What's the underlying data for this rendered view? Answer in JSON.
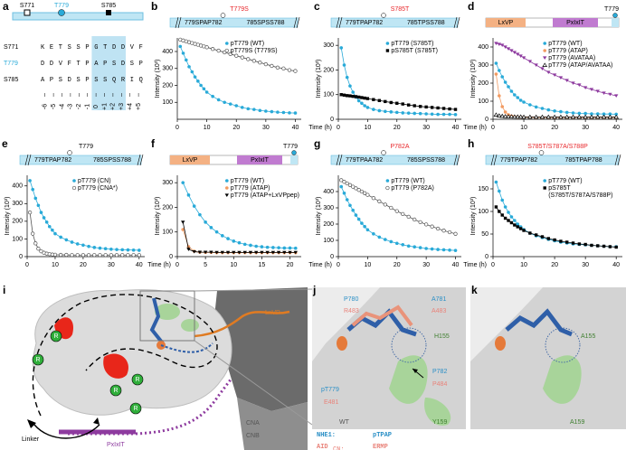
{
  "panel_a": {
    "label": "a",
    "sites": [
      "S771",
      "T779",
      "S785"
    ],
    "rows": [
      {
        "name": "S771",
        "seq": "KETSSPGTDDVF"
      },
      {
        "name": "T779",
        "seq": "DDVFTPAPSDSP"
      },
      {
        "name": "S785",
        "seq": "APSDSPSSQRIQ"
      }
    ],
    "positions": [
      "-6",
      "-5",
      "-4",
      "-3",
      "-2",
      "-1",
      "0",
      "+1",
      "+2",
      "+3",
      "+4",
      "+5"
    ]
  },
  "chart_data": [
    {
      "label": "b",
      "type": "line",
      "header": {
        "site": "T779S",
        "site_color": "#e8262a",
        "left": "779SPAP782",
        "right": "785SPSS788"
      },
      "ylabel": "Intensity (10³)",
      "x": [
        1,
        2,
        3,
        4,
        5,
        6,
        7,
        8,
        9,
        10,
        12,
        14,
        16,
        18,
        20,
        22,
        24,
        26,
        28,
        30,
        32,
        34,
        36,
        38,
        40
      ],
      "xlim": [
        0,
        42
      ],
      "xticks": [
        0,
        10,
        20,
        30,
        40
      ],
      "ylim": [
        0,
        480
      ],
      "yticks": [
        100,
        200,
        300,
        400
      ],
      "series": [
        {
          "name": "pT779 (WT)",
          "color": "#29aad8",
          "marker": "circle",
          "values": [
            430,
            390,
            350,
            310,
            280,
            250,
            225,
            200,
            180,
            160,
            135,
            115,
            100,
            90,
            80,
            70,
            62,
            58,
            52,
            48,
            45,
            42,
            40,
            38,
            37
          ]
        },
        {
          "name": "pT779S (T779S)",
          "color": "#555555",
          "marker": "open-circle",
          "values": [
            470,
            465,
            460,
            455,
            450,
            445,
            440,
            435,
            430,
            425,
            415,
            405,
            395,
            385,
            375,
            365,
            355,
            345,
            335,
            325,
            315,
            305,
            300,
            290,
            285
          ]
        }
      ]
    },
    {
      "label": "c",
      "type": "line",
      "header": {
        "site": "S785T",
        "site_color": "#e8262a",
        "left": "779TPAP782",
        "right": "785TPSS788"
      },
      "ylabel": "Intensity (10³)",
      "xlabel": "Time (h)",
      "x": [
        1,
        2,
        3,
        4,
        5,
        6,
        7,
        8,
        9,
        10,
        12,
        14,
        16,
        18,
        20,
        22,
        24,
        26,
        28,
        30,
        32,
        34,
        36,
        38,
        40
      ],
      "xlim": [
        0,
        42
      ],
      "xticks": [
        0,
        10,
        20,
        30,
        40
      ],
      "ylim": [
        0,
        330
      ],
      "yticks": [
        0,
        100,
        200,
        300
      ],
      "series": [
        {
          "name": "pT779 (S785T)",
          "color": "#29aad8",
          "marker": "circle",
          "values": [
            290,
            220,
            170,
            135,
            110,
            90,
            75,
            65,
            55,
            48,
            40,
            35,
            32,
            30,
            28,
            26,
            25,
            24,
            23,
            22,
            21,
            20,
            20,
            20,
            19
          ]
        },
        {
          "name": "pS785T (S785T)",
          "color": "#000000",
          "marker": "square",
          "values": [
            100,
            98,
            96,
            95,
            93,
            92,
            90,
            88,
            86,
            84,
            80,
            76,
            72,
            68,
            65,
            62,
            58,
            55,
            52,
            50,
            48,
            46,
            44,
            42,
            40
          ]
        }
      ]
    },
    {
      "label": "d",
      "type": "line",
      "header": {
        "motifs": [
          "LxVP",
          "PxIxIT"
        ],
        "site": "T779"
      },
      "ylabel": "Intensity (10³)",
      "xlabel": "Time (h)",
      "x": [
        1,
        2,
        3,
        4,
        5,
        6,
        7,
        8,
        9,
        10,
        12,
        14,
        16,
        18,
        20,
        22,
        24,
        26,
        28,
        30,
        32,
        34,
        36,
        38,
        40
      ],
      "xlim": [
        0,
        42
      ],
      "xticks": [
        0,
        10,
        20,
        30,
        40
      ],
      "ylim": [
        0,
        450
      ],
      "yticks": [
        0,
        100,
        200,
        300,
        400
      ],
      "series": [
        {
          "name": "pT779 (WT)",
          "color": "#29aad8",
          "marker": "circle",
          "values": [
            310,
            270,
            235,
            205,
            180,
            155,
            135,
            120,
            105,
            95,
            80,
            68,
            60,
            52,
            46,
            42,
            38,
            35,
            33,
            32,
            30,
            30,
            29,
            29,
            28
          ]
        },
        {
          "name": "pT779 (ATAP)",
          "color": "#f29b62",
          "marker": "circle",
          "values": [
            250,
            130,
            70,
            40,
            25,
            18,
            14,
            12,
            12,
            11,
            11,
            10,
            10,
            10,
            10,
            10,
            10,
            10,
            10,
            10,
            10,
            10,
            10,
            10,
            10
          ]
        },
        {
          "name": "pT779 (AVATAA)",
          "color": "#8e3b9f",
          "marker": "triangle-down",
          "values": [
            420,
            415,
            410,
            400,
            390,
            380,
            370,
            360,
            350,
            340,
            320,
            300,
            280,
            260,
            245,
            230,
            215,
            200,
            190,
            175,
            165,
            155,
            145,
            138,
            130
          ]
        },
        {
          "name": "pT779 (ATAP/AVATAA)",
          "color": "#000000",
          "marker": "open-triangle",
          "values": [
            25,
            20,
            18,
            16,
            15,
            15,
            14,
            14,
            14,
            13,
            13,
            13,
            13,
            13,
            13,
            13,
            13,
            13,
            13,
            13,
            13,
            13,
            13,
            13,
            13
          ]
        }
      ]
    },
    {
      "label": "e",
      "type": "line",
      "header": {
        "site": "T779",
        "site_color": "#000000",
        "left": "779TPAP782",
        "right": "785SPSS788"
      },
      "ylabel": "Intensity (10³)",
      "x": [
        1,
        2,
        3,
        4,
        5,
        6,
        7,
        8,
        9,
        10,
        12,
        14,
        16,
        18,
        20,
        22,
        24,
        26,
        28,
        30,
        32,
        34,
        36,
        38,
        40
      ],
      "xlim": [
        0,
        42
      ],
      "xticks": [
        0,
        10,
        20,
        30,
        40
      ],
      "ylim": [
        0,
        460
      ],
      "yticks": [
        0,
        100,
        200,
        300,
        400
      ],
      "series": [
        {
          "name": "pT779 (CN)",
          "color": "#29aad8",
          "marker": "circle",
          "values": [
            430,
            380,
            330,
            290,
            250,
            220,
            195,
            170,
            150,
            130,
            110,
            95,
            82,
            72,
            65,
            58,
            52,
            48,
            45,
            42,
            40,
            39,
            38,
            37,
            36
          ]
        },
        {
          "name": "pT779 (CNA*)",
          "color": "#555555",
          "marker": "open-circle",
          "values": [
            250,
            130,
            75,
            45,
            30,
            22,
            17,
            14,
            12,
            11,
            10,
            10,
            9,
            9,
            9,
            9,
            9,
            9,
            9,
            9,
            9,
            9,
            9,
            9,
            9
          ]
        }
      ]
    },
    {
      "label": "f",
      "type": "line",
      "header": {
        "motifs": [
          "LxVP",
          "PxIxIT"
        ],
        "site": "T779"
      },
      "ylabel": "Intensity (10³)",
      "xlabel": "Time (h)",
      "x": [
        1,
        2,
        3,
        4,
        5,
        6,
        7,
        8,
        9,
        10,
        11,
        12,
        13,
        14,
        15,
        16,
        17,
        18,
        19,
        20,
        21
      ],
      "xlim": [
        0,
        22
      ],
      "xticks": [
        0,
        5,
        10,
        15,
        20
      ],
      "ylim": [
        0,
        330
      ],
      "yticks": [
        0,
        100,
        200,
        300
      ],
      "series": [
        {
          "name": "pT779 (WT)",
          "color": "#29aad8",
          "marker": "circle",
          "values": [
            300,
            250,
            205,
            170,
            140,
            118,
            100,
            85,
            73,
            63,
            56,
            50,
            46,
            42,
            40,
            38,
            37,
            36,
            35,
            35,
            34
          ]
        },
        {
          "name": "pT779 (ATAP)",
          "color": "#f29b62",
          "marker": "circle",
          "values": [
            110,
            40,
            22,
            18,
            17,
            17,
            16,
            16,
            16,
            16,
            16,
            16,
            16,
            16,
            16,
            16,
            16,
            16,
            16,
            16,
            16
          ]
        },
        {
          "name": "pT779 (ATAP+LxVPpep)",
          "color": "#000000",
          "marker": "triangle-down",
          "values": [
            140,
            30,
            20,
            18,
            18,
            18,
            17,
            17,
            17,
            17,
            17,
            17,
            17,
            17,
            17,
            17,
            17,
            17,
            17,
            17,
            17
          ]
        }
      ]
    },
    {
      "label": "g",
      "type": "line",
      "header": {
        "site": "P782A",
        "site_color": "#e8262a",
        "left": "779TPAA782",
        "right": "785SPSS788"
      },
      "ylabel": "Intensity (10³)",
      "xlabel": "Time (h)",
      "x": [
        1,
        2,
        3,
        4,
        5,
        6,
        7,
        8,
        9,
        10,
        12,
        14,
        16,
        18,
        20,
        22,
        24,
        26,
        28,
        30,
        32,
        34,
        36,
        38,
        40
      ],
      "xlim": [
        0,
        42
      ],
      "xticks": [
        0,
        10,
        20,
        30,
        40
      ],
      "ylim": [
        0,
        500
      ],
      "yticks": [
        0,
        100,
        200,
        300,
        400
      ],
      "series": [
        {
          "name": "pT779 (WT)",
          "color": "#29aad8",
          "marker": "circle",
          "values": [
            430,
            390,
            350,
            315,
            285,
            255,
            230,
            205,
            185,
            165,
            140,
            120,
            105,
            92,
            82,
            73,
            65,
            60,
            55,
            50,
            47,
            44,
            42,
            40,
            38
          ]
        },
        {
          "name": "pT779 (P782A)",
          "color": "#555555",
          "marker": "open-circle",
          "values": [
            470,
            460,
            450,
            440,
            430,
            420,
            410,
            400,
            390,
            380,
            360,
            340,
            320,
            300,
            280,
            262,
            245,
            228,
            212,
            198,
            185,
            172,
            160,
            150,
            140
          ]
        }
      ]
    },
    {
      "label": "h",
      "type": "line",
      "header": {
        "site": "S785T/S787A/S788P",
        "site_color": "#e8262a",
        "left": "779TPAP782",
        "right": "785TPAP788"
      },
      "ylabel": "Intensity (10³)",
      "xlabel": "Time (h)",
      "x": [
        1,
        2,
        3,
        4,
        5,
        6,
        7,
        8,
        9,
        10,
        12,
        14,
        16,
        18,
        20,
        22,
        24,
        26,
        28,
        30,
        32,
        34,
        36,
        38,
        40
      ],
      "xlim": [
        0,
        42
      ],
      "xticks": [
        0,
        10,
        20,
        30,
        40
      ],
      "ylim": [
        0,
        180
      ],
      "yticks": [
        0,
        50,
        100,
        150
      ],
      "series": [
        {
          "name": "pT779 (WT)",
          "color": "#29aad8",
          "marker": "circle",
          "values": [
            165,
            145,
            125,
            110,
            98,
            88,
            80,
            72,
            66,
            60,
            52,
            46,
            42,
            38,
            35,
            32,
            30,
            28,
            27,
            26,
            25,
            24,
            23,
            22,
            22
          ]
        },
        {
          "name": "pS785T (S785T/S787A/S788P)",
          "color": "#000000",
          "marker": "square",
          "values": [
            110,
            100,
            92,
            85,
            80,
            75,
            70,
            66,
            62,
            58,
            52,
            48,
            44,
            40,
            37,
            34,
            32,
            30,
            28,
            27,
            25,
            24,
            23,
            22,
            21
          ]
        }
      ]
    }
  ],
  "panel_i": {
    "label": "i",
    "motifs": [
      "LxVP",
      "PxIxIT"
    ],
    "linker": "Linker",
    "subunits": [
      "CNA",
      "CNB"
    ],
    "residue_marks": [
      "R",
      "R",
      "R",
      "R",
      "R"
    ]
  },
  "panel_j": {
    "label": "j",
    "residues": [
      {
        "text": "P780",
        "color": "#2a8fc6"
      },
      {
        "text": "R483",
        "color": "#e9837a"
      },
      {
        "text": "A781",
        "color": "#2a8fc6"
      },
      {
        "text": "A483",
        "color": "#e9837a"
      },
      {
        "text": "H155",
        "color": "#3f7f2f"
      },
      {
        "text": "P782",
        "color": "#2a8fc6"
      },
      {
        "text": "P484",
        "color": "#e9837a"
      },
      {
        "text": "pT779",
        "color": "#2a8fc6"
      },
      {
        "text": "E481",
        "color": "#e9837a"
      },
      {
        "text": "Y159",
        "color": "#3f7f2f"
      }
    ],
    "wt": "WT",
    "legend": [
      {
        "name": "NHE1:",
        "seq": "pTPAP",
        "color": "#2a8fc6"
      },
      {
        "name": "AID",
        "sub": "CN:",
        "seq": "ERMP",
        "color": "#e9837a"
      }
    ]
  },
  "panel_k": {
    "label": "k",
    "residues": [
      "A155",
      "A159"
    ]
  }
}
